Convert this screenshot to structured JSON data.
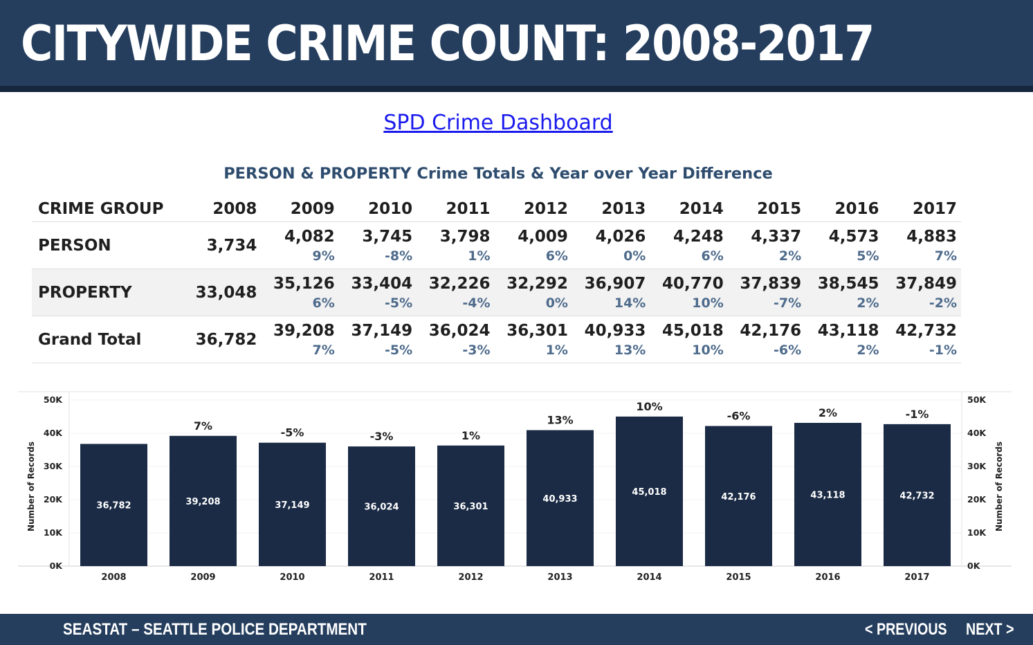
{
  "header": {
    "title": "CITYWIDE CRIME COUNT: 2008-2017"
  },
  "link": {
    "label": "SPD Crime Dashboard"
  },
  "table": {
    "title": "PERSON & PROPERTY Crime Totals & Year over Year Difference",
    "group_header": "CRIME GROUP",
    "years": [
      "2008",
      "2009",
      "2010",
      "2011",
      "2012",
      "2013",
      "2014",
      "2015",
      "2016",
      "2017"
    ],
    "rows": [
      {
        "label": "PERSON",
        "values": [
          "3,734",
          "4,082",
          "3,745",
          "3,798",
          "4,009",
          "4,026",
          "4,248",
          "4,337",
          "4,573",
          "4,883"
        ],
        "changes": [
          "",
          "9%",
          "-8%",
          "1%",
          "6%",
          "0%",
          "6%",
          "2%",
          "5%",
          "7%"
        ]
      },
      {
        "label": "PROPERTY",
        "values": [
          "33,048",
          "35,126",
          "33,404",
          "32,226",
          "32,292",
          "36,907",
          "40,770",
          "37,839",
          "38,545",
          "37,849"
        ],
        "changes": [
          "",
          "6%",
          "-5%",
          "-4%",
          "0%",
          "14%",
          "10%",
          "-7%",
          "2%",
          "-2%"
        ]
      },
      {
        "label": "Grand Total",
        "values": [
          "36,782",
          "39,208",
          "37,149",
          "36,024",
          "36,301",
          "40,933",
          "45,018",
          "42,176",
          "43,118",
          "42,732"
        ],
        "changes": [
          "",
          "7%",
          "-5%",
          "-3%",
          "1%",
          "13%",
          "10%",
          "-6%",
          "2%",
          "-1%"
        ]
      }
    ]
  },
  "chart_data": {
    "type": "bar",
    "categories": [
      "2008",
      "2009",
      "2010",
      "2011",
      "2012",
      "2013",
      "2014",
      "2015",
      "2016",
      "2017"
    ],
    "values": [
      36782,
      39208,
      37149,
      36024,
      36301,
      40933,
      45018,
      42176,
      43118,
      42732
    ],
    "value_labels": [
      "36,782",
      "39,208",
      "37,149",
      "36,024",
      "36,301",
      "40,933",
      "45,018",
      "42,176",
      "43,118",
      "42,732"
    ],
    "change_labels": [
      "",
      "7%",
      "-5%",
      "-3%",
      "1%",
      "13%",
      "10%",
      "-6%",
      "2%",
      "-1%"
    ],
    "ylabel": "Number of Records",
    "ylim": [
      0,
      50000
    ],
    "yticks": [
      0,
      10000,
      20000,
      30000,
      40000,
      50000
    ],
    "ytick_labels": [
      "0K",
      "10K",
      "20K",
      "30K",
      "40K",
      "50K"
    ],
    "bar_color": "#1b2b45",
    "grid": true,
    "dual_axis": true
  },
  "footer": {
    "title": "SEASTAT – SEATTLE POLICE DEPARTMENT",
    "prev_label": "< PREVIOUS",
    "next_label": "NEXT >"
  },
  "colors": {
    "header_bg": "#253e5e",
    "accent_text": "#4e6b8c",
    "link": "#1a1aee"
  }
}
